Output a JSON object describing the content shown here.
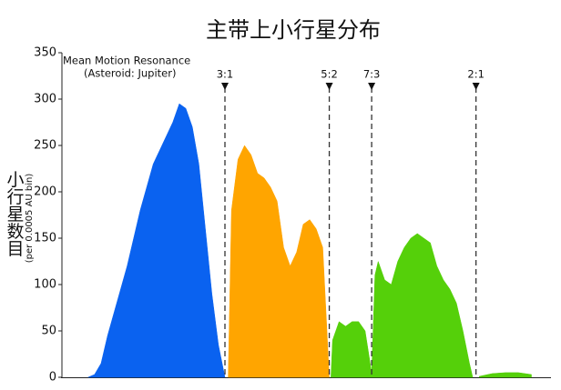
{
  "chart_data": {
    "type": "area",
    "title": "主带上小行星分布",
    "y_label": "小行星数目",
    "y_label_sub": "(per 0.0005 AU bin)",
    "annotation_lines": [
      "Mean Motion Resonance",
      "(Asteroid: Jupiter)"
    ],
    "xlim": [
      2.0,
      3.5
    ],
    "ylim": [
      0,
      350
    ],
    "yticks": [
      0,
      50,
      100,
      150,
      200,
      250,
      300,
      350
    ],
    "series": [
      {
        "color": "#0a62f0",
        "x": [
          2.08,
          2.1,
          2.12,
          2.14,
          2.16,
          2.18,
          2.2,
          2.22,
          2.24,
          2.26,
          2.28,
          2.3,
          2.32,
          2.34,
          2.36,
          2.38,
          2.4,
          2.42,
          2.44,
          2.46,
          2.48,
          2.5
        ],
        "values": [
          0,
          3,
          15,
          45,
          70,
          95,
          120,
          150,
          180,
          205,
          230,
          245,
          260,
          275,
          295,
          290,
          270,
          230,
          160,
          90,
          35,
          0
        ]
      },
      {
        "color": "#ffa500",
        "x": [
          2.51,
          2.52,
          2.54,
          2.56,
          2.58,
          2.6,
          2.62,
          2.64,
          2.66,
          2.68,
          2.7,
          2.72,
          2.74,
          2.76,
          2.78,
          2.8,
          2.82
        ],
        "values": [
          0,
          180,
          235,
          250,
          240,
          220,
          215,
          205,
          190,
          140,
          120,
          135,
          165,
          170,
          160,
          140,
          0
        ]
      },
      {
        "color": "#55d00a",
        "x": [
          2.825,
          2.83,
          2.85,
          2.87,
          2.89,
          2.91,
          2.93,
          2.95,
          2.96,
          2.97,
          2.99,
          3.01,
          3.03,
          3.05,
          3.07,
          3.09,
          3.11,
          3.13,
          3.15,
          3.17,
          3.19,
          3.21,
          3.23,
          3.25,
          3.26,
          3.27,
          3.28,
          3.32,
          3.36,
          3.4,
          3.44
        ],
        "values": [
          0,
          40,
          60,
          55,
          60,
          60,
          50,
          5,
          110,
          125,
          105,
          100,
          125,
          140,
          150,
          155,
          150,
          145,
          120,
          105,
          95,
          80,
          50,
          15,
          0,
          null,
          1,
          4,
          5,
          5,
          3
        ]
      }
    ],
    "resonances": [
      {
        "label": "3:1",
        "x": 2.5
      },
      {
        "label": "5:2",
        "x": 2.82
      },
      {
        "label": "7:3",
        "x": 2.95
      },
      {
        "label": "2:1",
        "x": 3.27
      }
    ]
  }
}
